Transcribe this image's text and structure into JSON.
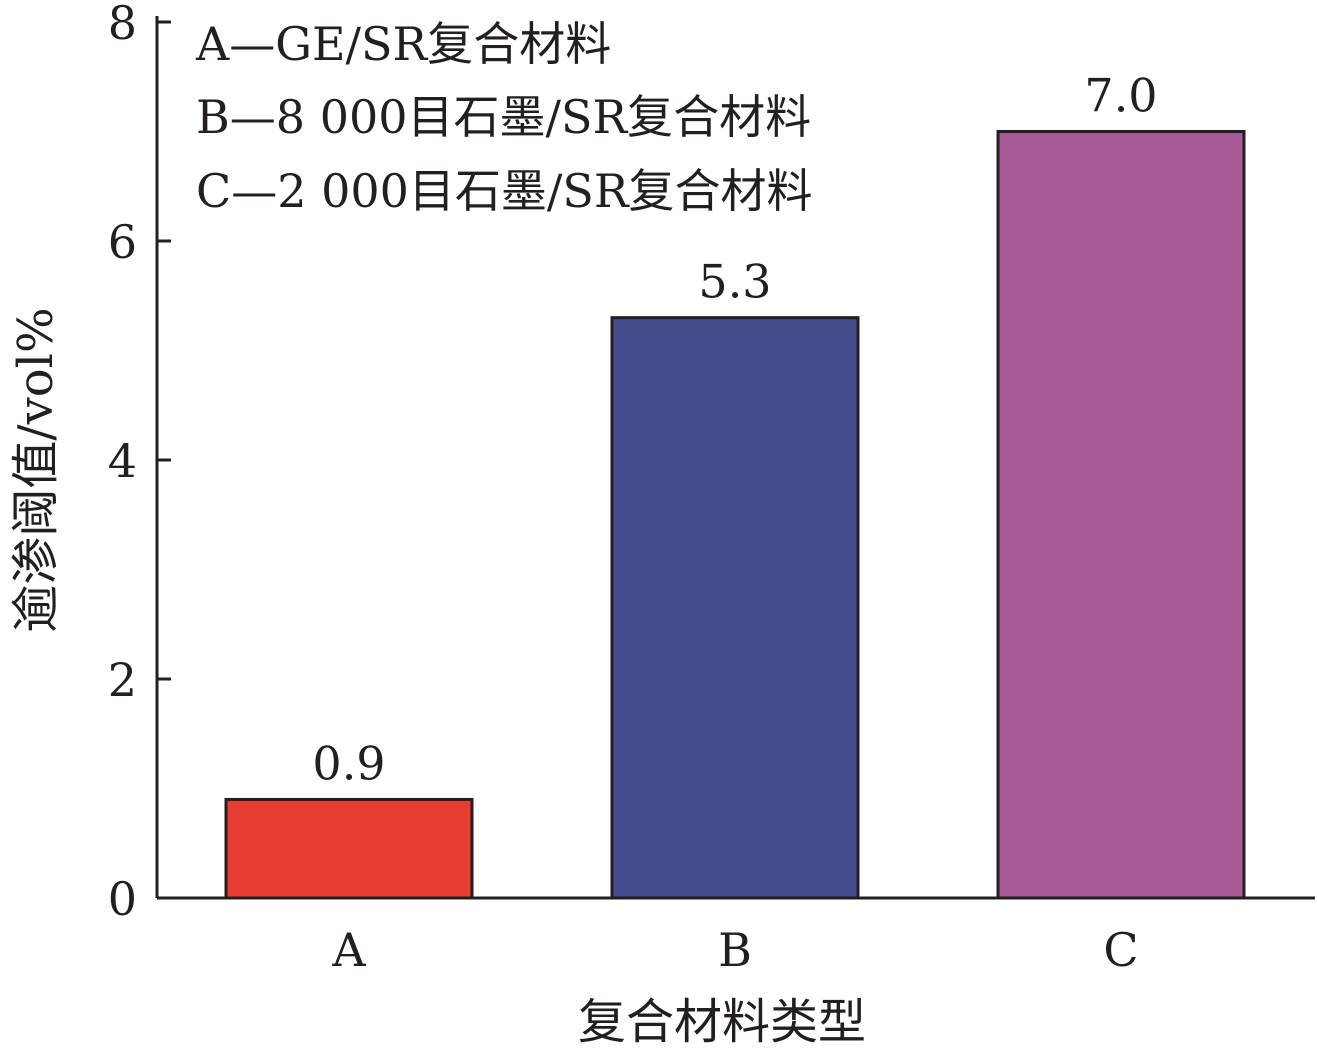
{
  "chart_data": {
    "type": "bar",
    "categories": [
      "A",
      "B",
      "C"
    ],
    "values": [
      0.9,
      5.3,
      7.0
    ],
    "value_labels": [
      "0.9",
      "5.3",
      "7.0"
    ],
    "colors": [
      "#e63c32",
      "#444d8c",
      "#a65a96"
    ],
    "xlabel": "复合材料类型",
    "ylabel": "逾渗阈值/vol%",
    "ylim": [
      0,
      8
    ],
    "yticks": [
      0,
      2,
      4,
      6,
      8
    ],
    "grid": false,
    "legend_position": "top-left",
    "legend": [
      "A—GE/SR复合材料",
      "B—8 000目石墨/SR复合材料",
      "C—2 000目石墨/SR复合材料"
    ]
  }
}
